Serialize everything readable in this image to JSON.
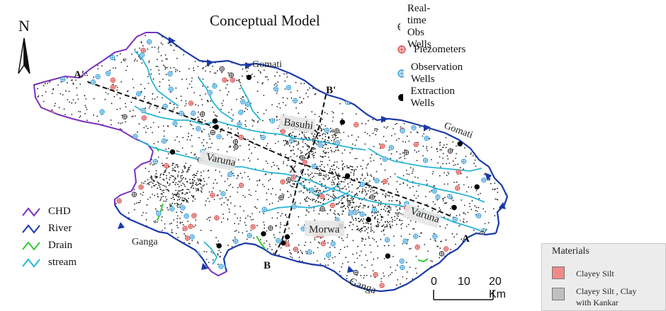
{
  "map": {
    "title": "Conceptual Model",
    "north_label": "N",
    "section_labels": {
      "a_prime": "A'",
      "a": "A",
      "b_prime": "B'",
      "b": "B",
      "intersection": "X"
    },
    "place_labels": {
      "gomati_top": "Gomati",
      "gomati_right": "Gomati",
      "basuhi": "Basuhi",
      "varuna_left": "Varuna",
      "varuna_right": "Varuna",
      "morwa": "Morwa",
      "ganga_left": "Ganga",
      "ganga_bottom": "Ganga"
    }
  },
  "well_legend": [
    {
      "name": "Real-time Obs Wells",
      "color": "#222222",
      "icon": "crosshair-circle-icon"
    },
    {
      "name": "Piezometers",
      "color": "#d9534f",
      "icon": "crosshair-circle-icon"
    },
    {
      "name": "Observation Wells",
      "color": "#3aa0d8",
      "icon": "crosshair-circle-icon"
    },
    {
      "name": "Extraction Wells",
      "color": "#000000",
      "icon": "filled-circle-icon"
    }
  ],
  "boundary_legend": [
    {
      "name": "CHD",
      "color": "#7b2fbe"
    },
    {
      "name": "River",
      "color": "#1a3aa8"
    },
    {
      "name": "Drain",
      "color": "#33cc33"
    },
    {
      "name": "stream",
      "color": "#29b6d6"
    }
  ],
  "materials": {
    "title": "Materials",
    "items": [
      {
        "name": "Clayey Silt",
        "color": "#f08a8a"
      },
      {
        "name_line1": "Clayey Silt , Clay",
        "name_line2": "with Kankar",
        "color": "#c0c0c0"
      }
    ]
  },
  "scale_bar": {
    "labels": [
      "0",
      "10",
      "20 Km"
    ]
  }
}
